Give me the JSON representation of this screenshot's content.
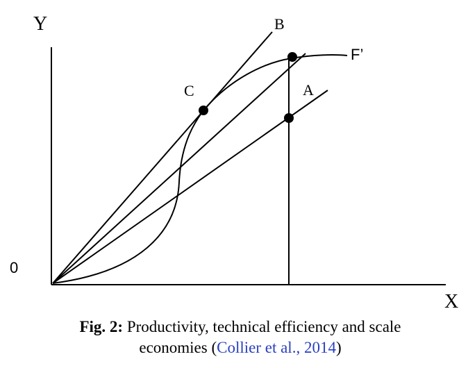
{
  "diagram": {
    "axis_labels": {
      "y": "Y",
      "x": "X",
      "origin": "0"
    },
    "point_labels": {
      "b": "B",
      "f": "F’",
      "c": "C",
      "a": "A"
    },
    "caption": {
      "label": "Fig. 2:",
      "text_line1": "Productivity, technical efficiency and scale",
      "text_line2_start": "economies (",
      "citation": "Collier et al., 2014",
      "text_line2_end": ")"
    }
  }
}
